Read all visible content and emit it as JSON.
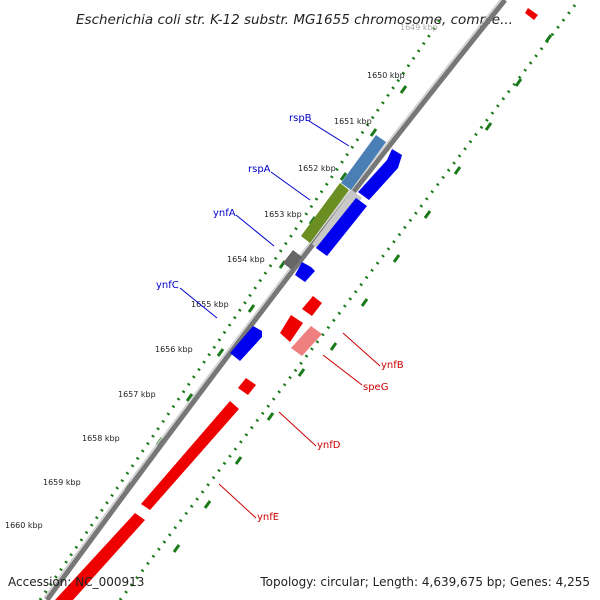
{
  "title": "Escherichia coli str. K-12 substr. MG1655 chromosome, comple...",
  "accession": "Accession: NC_000913",
  "topology": "Topology: circular; Length: 4,639,675 bp; Genes: 4,255",
  "ticks": [
    "1649 kbp",
    "1650 kbp",
    "1651 kbp",
    "1652 kbp",
    "1653 kbp",
    "1654 kbp",
    "1655 kbp",
    "1656 kbp",
    "1657 kbp",
    "1658 kbp",
    "1659 kbp",
    "1660 kbp"
  ],
  "genes_forward": [
    "rspB",
    "rspA",
    "ynfA",
    "ynfC"
  ],
  "genes_reverse": [
    "ynfB",
    "speG",
    "ynfD",
    "ynfE"
  ],
  "colors": {
    "forward_cds": "#0000ee",
    "reverse_cds": "#ee0000",
    "forward_label": "#0000cc",
    "reverse_label": "#cc0000",
    "ticks": "#1a7a1a",
    "backbone": "#888888"
  }
}
